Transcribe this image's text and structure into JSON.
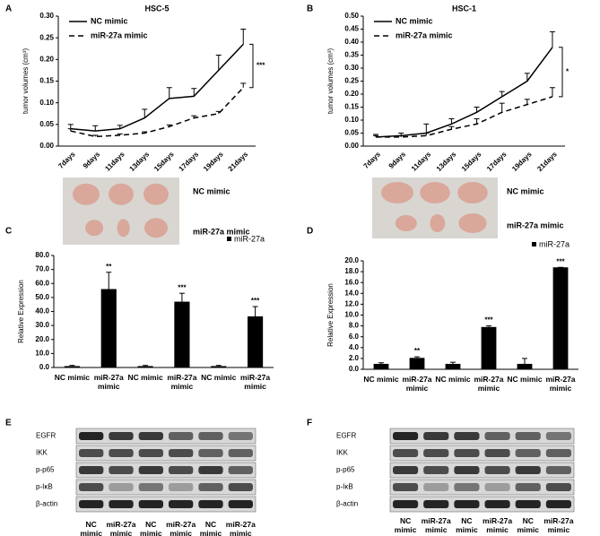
{
  "panel_labels": [
    "A",
    "B",
    "C",
    "D",
    "E",
    "F"
  ],
  "chart_data": [
    {
      "type": "line",
      "title": "HSC-5",
      "y_label": "tumor volumes (cm³)",
      "categories": [
        "7days",
        "9days",
        "11days",
        "13days",
        "15days",
        "17days",
        "19days",
        "21days"
      ],
      "ylim": [
        0,
        0.3
      ],
      "yticks": [
        {
          "value": 0,
          "label": "0.00"
        },
        {
          "value": 0.05,
          "label": "0.05"
        },
        {
          "value": 0.1,
          "label": "0.10"
        },
        {
          "value": 0.15,
          "label": "0.15"
        },
        {
          "value": 0.2,
          "label": "0.20"
        },
        {
          "value": 0.25,
          "label": "0.25"
        },
        {
          "value": 0.3,
          "label": "0.30"
        }
      ],
      "series": [
        {
          "name": "NC mimic",
          "color": "#000000",
          "line_style": "solid",
          "values": [
            0.04,
            0.035,
            0.04,
            0.065,
            0.11,
            0.115,
            0.175,
            0.235
          ],
          "errors": [
            0.01,
            0.012,
            0.008,
            0.02,
            0.025,
            0.018,
            0.035,
            0.035
          ]
        },
        {
          "name": "miR-27a mimic",
          "color": "#000000",
          "line_style": "dashed",
          "values": [
            0.035,
            0.022,
            0.025,
            0.03,
            0.045,
            0.065,
            0.075,
            0.135
          ],
          "errors": [
            0.005,
            0.003,
            0.003,
            0.003,
            0.004,
            0.005,
            0.005,
            0.01
          ]
        }
      ],
      "annotation": "***"
    },
    {
      "type": "line",
      "title": "HSC-1",
      "y_label": "tumor volumes (cm³)",
      "categories": [
        "7days",
        "9days",
        "11days",
        "13days",
        "15days",
        "17days",
        "19days",
        "21days"
      ],
      "ylim": [
        0,
        0.5
      ],
      "yticks": [
        {
          "value": 0,
          "label": "0.00"
        },
        {
          "value": 0.05,
          "label": "0.05"
        },
        {
          "value": 0.1,
          "label": "0.10"
        },
        {
          "value": 0.15,
          "label": "0.15"
        },
        {
          "value": 0.2,
          "label": "0.20"
        },
        {
          "value": 0.25,
          "label": "0.25"
        },
        {
          "value": 0.3,
          "label": "0.30"
        },
        {
          "value": 0.35,
          "label": "0.35"
        },
        {
          "value": 0.4,
          "label": "0.40"
        },
        {
          "value": 0.45,
          "label": "0.45"
        },
        {
          "value": 0.5,
          "label": "0.50"
        }
      ],
      "series": [
        {
          "name": "NC mimic",
          "color": "#000000",
          "line_style": "solid",
          "values": [
            0.035,
            0.04,
            0.05,
            0.085,
            0.13,
            0.19,
            0.25,
            0.38
          ],
          "errors": [
            0.01,
            0.01,
            0.035,
            0.02,
            0.02,
            0.02,
            0.03,
            0.06
          ]
        },
        {
          "name": "miR-27a mimic",
          "color": "#000000",
          "line_style": "dashed",
          "values": [
            0.035,
            0.035,
            0.04,
            0.065,
            0.085,
            0.13,
            0.16,
            0.19
          ],
          "errors": [
            0.005,
            0.005,
            0.01,
            0.01,
            0.02,
            0.035,
            0.02,
            0.035
          ]
        }
      ],
      "annotation": "*"
    },
    {
      "type": "bar",
      "y_label": "Relative Expression",
      "categories": [
        "NC mimic",
        "miR-27a mimic",
        "NC mimic",
        "miR-27a mimic",
        "NC mimic",
        "miR-27a mimic"
      ],
      "ylim": [
        0,
        80
      ],
      "yticks": [
        {
          "value": 0,
          "label": "0.0"
        },
        {
          "value": 10,
          "label": "10.0"
        },
        {
          "value": 20,
          "label": "20.0"
        },
        {
          "value": 30,
          "label": "30.0"
        },
        {
          "value": 40,
          "label": "40.0"
        },
        {
          "value": 50,
          "label": "50.0"
        },
        {
          "value": 60,
          "label": "60.0"
        },
        {
          "value": 70,
          "label": "70.0"
        },
        {
          "value": 80,
          "label": "80.0"
        }
      ],
      "series": [
        {
          "name": "miR-27a",
          "color": "#000000",
          "values": [
            1,
            56,
            1,
            47,
            1,
            36.5
          ],
          "errors": [
            0.5,
            12,
            0.5,
            6,
            0.5,
            7
          ]
        }
      ],
      "significance": [
        null,
        "**",
        null,
        "***",
        null,
        "***"
      ]
    },
    {
      "type": "bar",
      "y_label": "Relative Expression",
      "categories": [
        "NC mimic",
        "miR-27a mimic",
        "NC mimic",
        "miR-27a mimic",
        "NC mimic",
        "miR-27a mimic"
      ],
      "ylim": [
        0,
        20
      ],
      "yticks": [
        {
          "value": 0,
          "label": "0.0"
        },
        {
          "value": 2,
          "label": "2.0"
        },
        {
          "value": 4,
          "label": "4.0"
        },
        {
          "value": 6,
          "label": "6.0"
        },
        {
          "value": 8,
          "label": "8.0"
        },
        {
          "value": 10,
          "label": "10.0"
        },
        {
          "value": 12,
          "label": "12.0"
        },
        {
          "value": 14,
          "label": "14.0"
        },
        {
          "value": 16,
          "label": "16.0"
        },
        {
          "value": 18,
          "label": "18.0"
        },
        {
          "value": 20,
          "label": "20.0"
        }
      ],
      "series": [
        {
          "name": "miR-27a",
          "color": "#000000",
          "values": [
            1,
            2.1,
            1,
            7.8,
            1,
            18.8
          ],
          "errors": [
            0.2,
            0.2,
            0.3,
            0.2,
            1,
            0
          ]
        }
      ],
      "significance": [
        null,
        "**",
        null,
        "***",
        null,
        "***"
      ]
    }
  ],
  "photos": [
    {
      "labels": [
        "NC mimic",
        "miR-27a mimic"
      ]
    },
    {
      "labels": [
        "NC mimic",
        "miR-27a mimic"
      ]
    }
  ],
  "blots": [
    {
      "rows": [
        "EGFR",
        "IKK",
        "p-p65",
        "p-IκB",
        "β-actin"
      ],
      "lanes": [
        "NC mimic",
        "miR-27a mimic",
        "NC mimic",
        "miR-27a mimic",
        "NC mimic",
        "miR-27a mimic"
      ]
    },
    {
      "rows": [
        "EGFR",
        "IKK",
        "p-p65",
        "p-IκB",
        "β-actin"
      ],
      "lanes": [
        "NC mimic",
        "miR-27a mimic",
        "NC mimic",
        "miR-27a mimic",
        "NC mimic",
        "miR-27a mimic"
      ]
    }
  ]
}
